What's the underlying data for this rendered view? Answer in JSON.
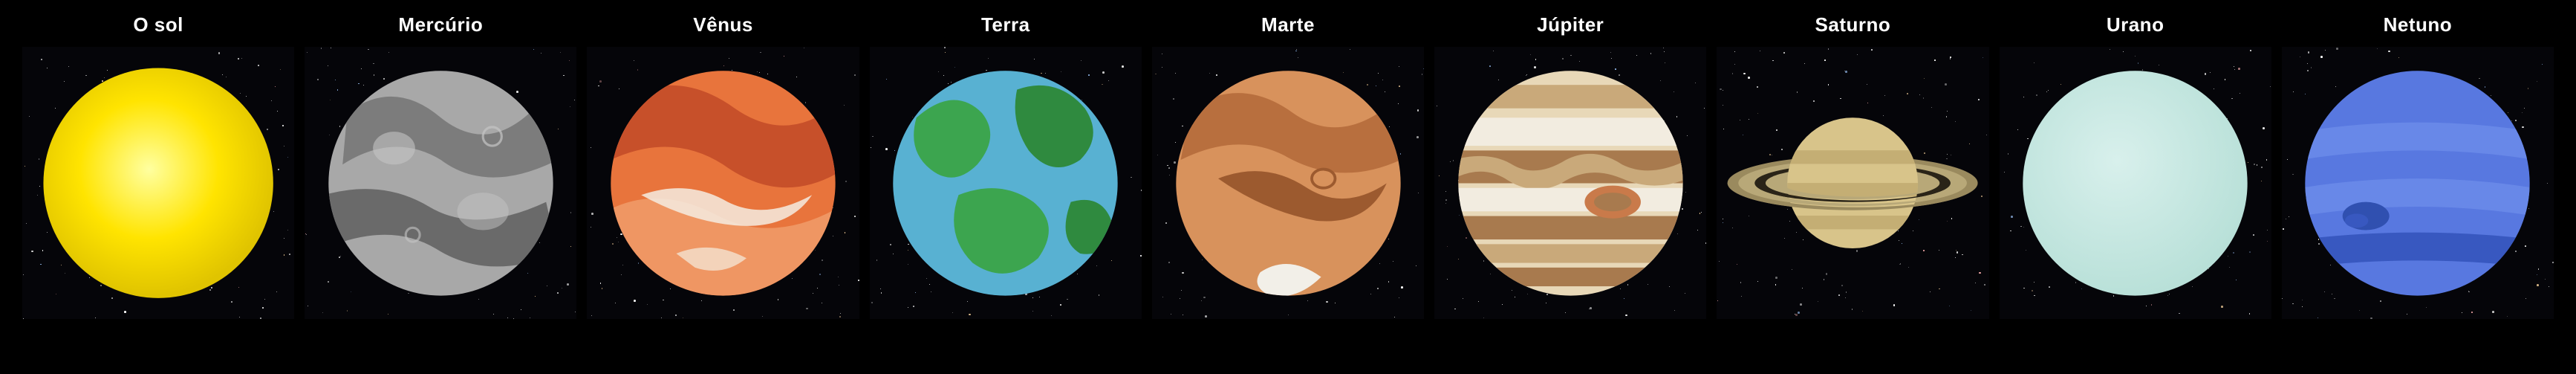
{
  "background_color": "#000000",
  "label_color": "#ffffff",
  "label_fontsize": 26,
  "tile_background": "#050509",
  "bodies": [
    {
      "id": "sun",
      "label": "O sol",
      "size": 0.88,
      "colors": {
        "core": "#ffffa0",
        "mid": "#ffe400",
        "edge": "#e0c400"
      }
    },
    {
      "id": "mercury",
      "label": "Mercúrio",
      "size": 0.86,
      "colors": {
        "base": "#a8a8a8",
        "dark": "#7c7c7c",
        "darker": "#6a6a6a",
        "light": "#c4c4c4"
      }
    },
    {
      "id": "venus",
      "label": "Vênus",
      "size": 0.86,
      "colors": {
        "base": "#e8743c",
        "dark": "#c7502a",
        "light": "#f2a574",
        "white": "#f5ece0"
      }
    },
    {
      "id": "earth",
      "label": "Terra",
      "size": 0.86,
      "colors": {
        "ocean": "#5fb8d8",
        "ocean2": "#4aa2c4",
        "land": "#3ca54f",
        "land2": "#2f8a3f"
      }
    },
    {
      "id": "mars",
      "label": "Marte",
      "size": 0.86,
      "colors": {
        "base": "#d8925c",
        "dark": "#b86f3e",
        "darker": "#9c5a2f",
        "ice": "#f2efe8"
      }
    },
    {
      "id": "jupiter",
      "label": "Júpiter",
      "size": 0.86,
      "colors": {
        "cream": "#e8d8b8",
        "tan": "#c9a97a",
        "brown": "#a87a4e",
        "white": "#f2ece0",
        "spot": "#c97a4a"
      }
    },
    {
      "id": "saturn",
      "label": "Saturno",
      "size": 0.58,
      "colors": {
        "body": "#d8c48a",
        "body2": "#c4ae74",
        "ring": "#b8a878",
        "ring2": "#9a8a5e",
        "ring_gap": "#2a2418"
      }
    },
    {
      "id": "uranus",
      "label": "Urano",
      "size": 0.86,
      "colors": {
        "base": "#d8f0ec",
        "shade": "#b8e0d8"
      }
    },
    {
      "id": "neptune",
      "label": "Netuno",
      "size": 0.86,
      "colors": {
        "base": "#5878e0",
        "band": "#6888e8",
        "dark": "#3858c0",
        "spot": "#3050b0"
      }
    }
  ],
  "star_seed": 42,
  "stars_per_tile": 140
}
